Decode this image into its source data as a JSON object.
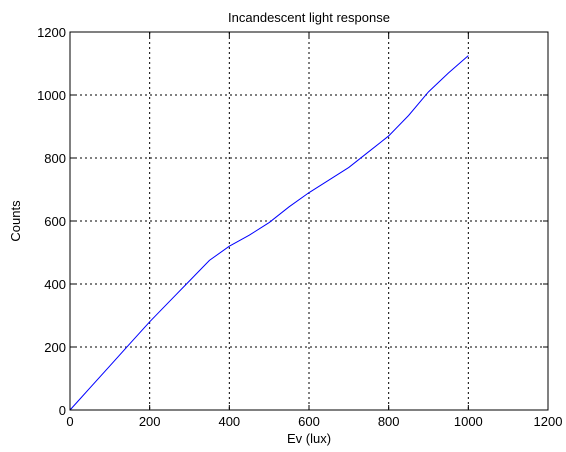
{
  "chart_data": {
    "type": "line",
    "title": "Incandescent light response",
    "xlabel": "Ev (lux)",
    "ylabel": "Counts",
    "xlim": [
      0,
      1200
    ],
    "ylim": [
      0,
      1200
    ],
    "xticks": [
      0,
      200,
      400,
      600,
      800,
      1000,
      1200
    ],
    "yticks": [
      0,
      200,
      400,
      600,
      800,
      1000,
      1200
    ],
    "xtick_labels": [
      "0",
      "200",
      "400",
      "600",
      "800",
      "1000",
      "1200"
    ],
    "ytick_labels": [
      "0",
      "200",
      "400",
      "600",
      "800",
      "1000",
      "1200"
    ],
    "grid": true,
    "grid_style": "dotted",
    "series": [
      {
        "color": "#0000ff",
        "x": [
          0,
          25,
          50,
          100,
          150,
          200,
          250,
          300,
          350,
          400,
          450,
          500,
          550,
          600,
          650,
          700,
          750,
          800,
          850,
          900,
          950,
          1000
        ],
        "y": [
          0,
          35,
          70,
          140,
          210,
          280,
          345,
          410,
          475,
          520,
          555,
          595,
          645,
          690,
          730,
          770,
          820,
          870,
          935,
          1010,
          1070,
          1125
        ]
      }
    ]
  }
}
